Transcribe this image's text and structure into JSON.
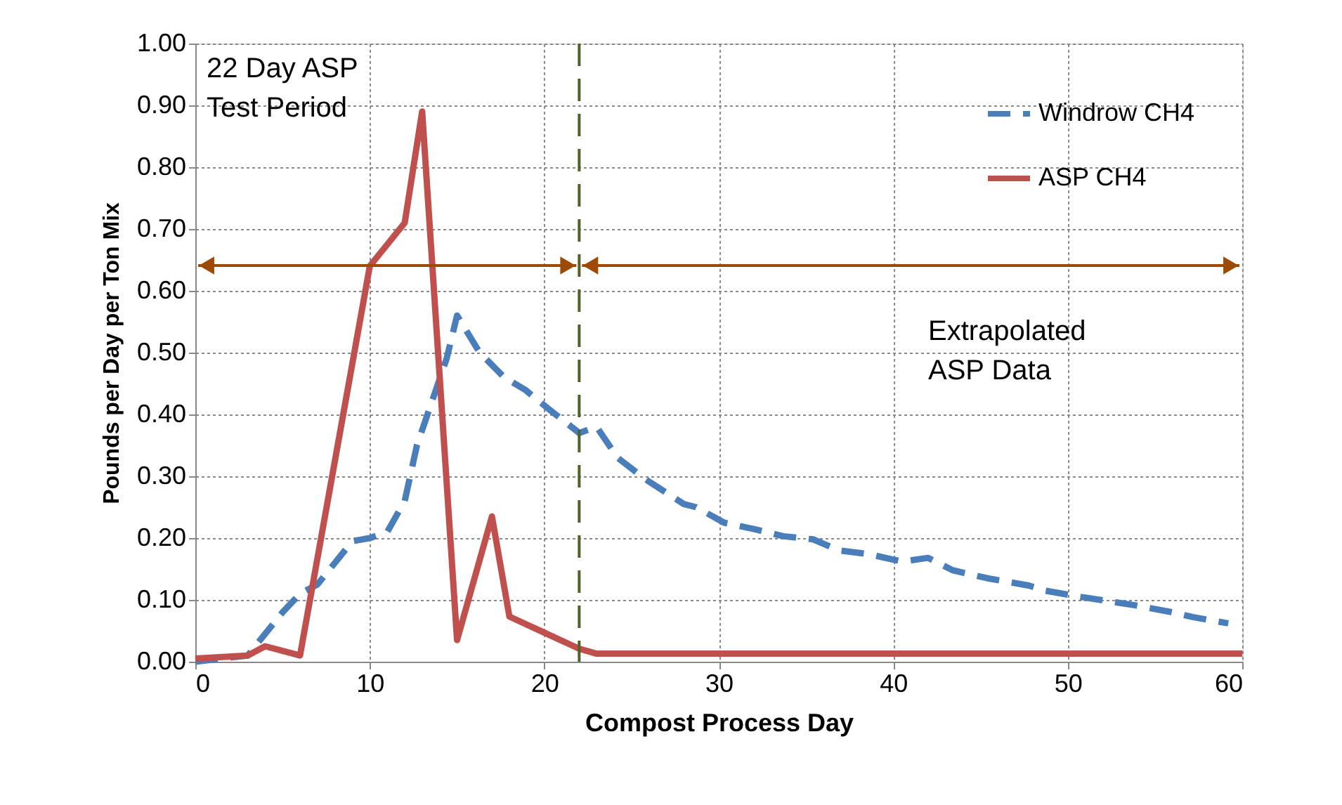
{
  "chart_data": {
    "type": "line",
    "xlabel": "Compost Process Day",
    "ylabel": "Pounds per Day per Ton Mix",
    "xlim": [
      0,
      60
    ],
    "xticks": [
      0,
      10,
      20,
      30,
      40,
      50,
      60
    ],
    "ylim": [
      0,
      1
    ],
    "yticks": [
      {
        "value": 0,
        "label": "0.00"
      },
      {
        "value": 0.1,
        "label": "0.10"
      },
      {
        "value": 0.2,
        "label": "0.20"
      },
      {
        "value": 0.3,
        "label": "0.30"
      },
      {
        "value": 0.4,
        "label": "0.40"
      },
      {
        "value": 0.5,
        "label": "0.50"
      },
      {
        "value": 0.6,
        "label": "0.60"
      },
      {
        "value": 0.7,
        "label": "0.70"
      },
      {
        "value": 0.8,
        "label": "0.80"
      },
      {
        "value": 0.9,
        "label": "0.90"
      },
      {
        "value": 1,
        "label": "1.00"
      }
    ],
    "grid": true,
    "legend": "top right",
    "marker": "none",
    "series": [
      {
        "name": "Windrow CH4",
        "color": "#4a7ebb",
        "line_style": "dashed",
        "x": [
          0,
          3,
          5,
          6,
          7,
          8,
          9,
          10,
          11,
          12,
          12.7,
          14.4,
          15,
          16.3,
          17.7,
          18.9,
          20.2,
          22,
          23,
          24.2,
          25.8,
          28,
          28.7,
          30.3,
          32.1,
          33.7,
          35.4,
          36.9,
          38.6,
          40.5,
          42,
          43.4,
          45.4,
          47.8,
          48.7,
          50.5,
          53.9,
          55.8,
          57.2,
          59.2
        ],
        "values": [
          0,
          0.01,
          0.08,
          0.11,
          0.125,
          0.16,
          0.195,
          0.2,
          0.21,
          0.26,
          0.35,
          0.49,
          0.56,
          0.5,
          0.46,
          0.44,
          0.41,
          0.37,
          0.38,
          0.33,
          0.295,
          0.255,
          0.25,
          0.225,
          0.214,
          0.203,
          0.198,
          0.18,
          0.174,
          0.162,
          0.168,
          0.148,
          0.135,
          0.123,
          0.115,
          0.106,
          0.091,
          0.081,
          0.072,
          0.062
        ]
      },
      {
        "name": "ASP CH4",
        "color": "#c0504d",
        "line_style": "solid",
        "x": [
          0,
          3,
          4,
          6,
          10,
          12,
          13,
          15,
          17,
          18,
          20,
          22,
          23,
          60
        ],
        "values": [
          0.005,
          0.01,
          0.025,
          0.01,
          0.64,
          0.71,
          0.89,
          0.035,
          0.235,
          0.073,
          0.047,
          0.021,
          0.013,
          0.013
        ]
      }
    ],
    "ref_lines": [
      {
        "axis": "x",
        "value": 22,
        "color": "#4f6228",
        "line_style": "dashed"
      }
    ],
    "annotations": [
      "22 Day ASP\nTest Period",
      "Extrapolated\nASP Data"
    ]
  }
}
